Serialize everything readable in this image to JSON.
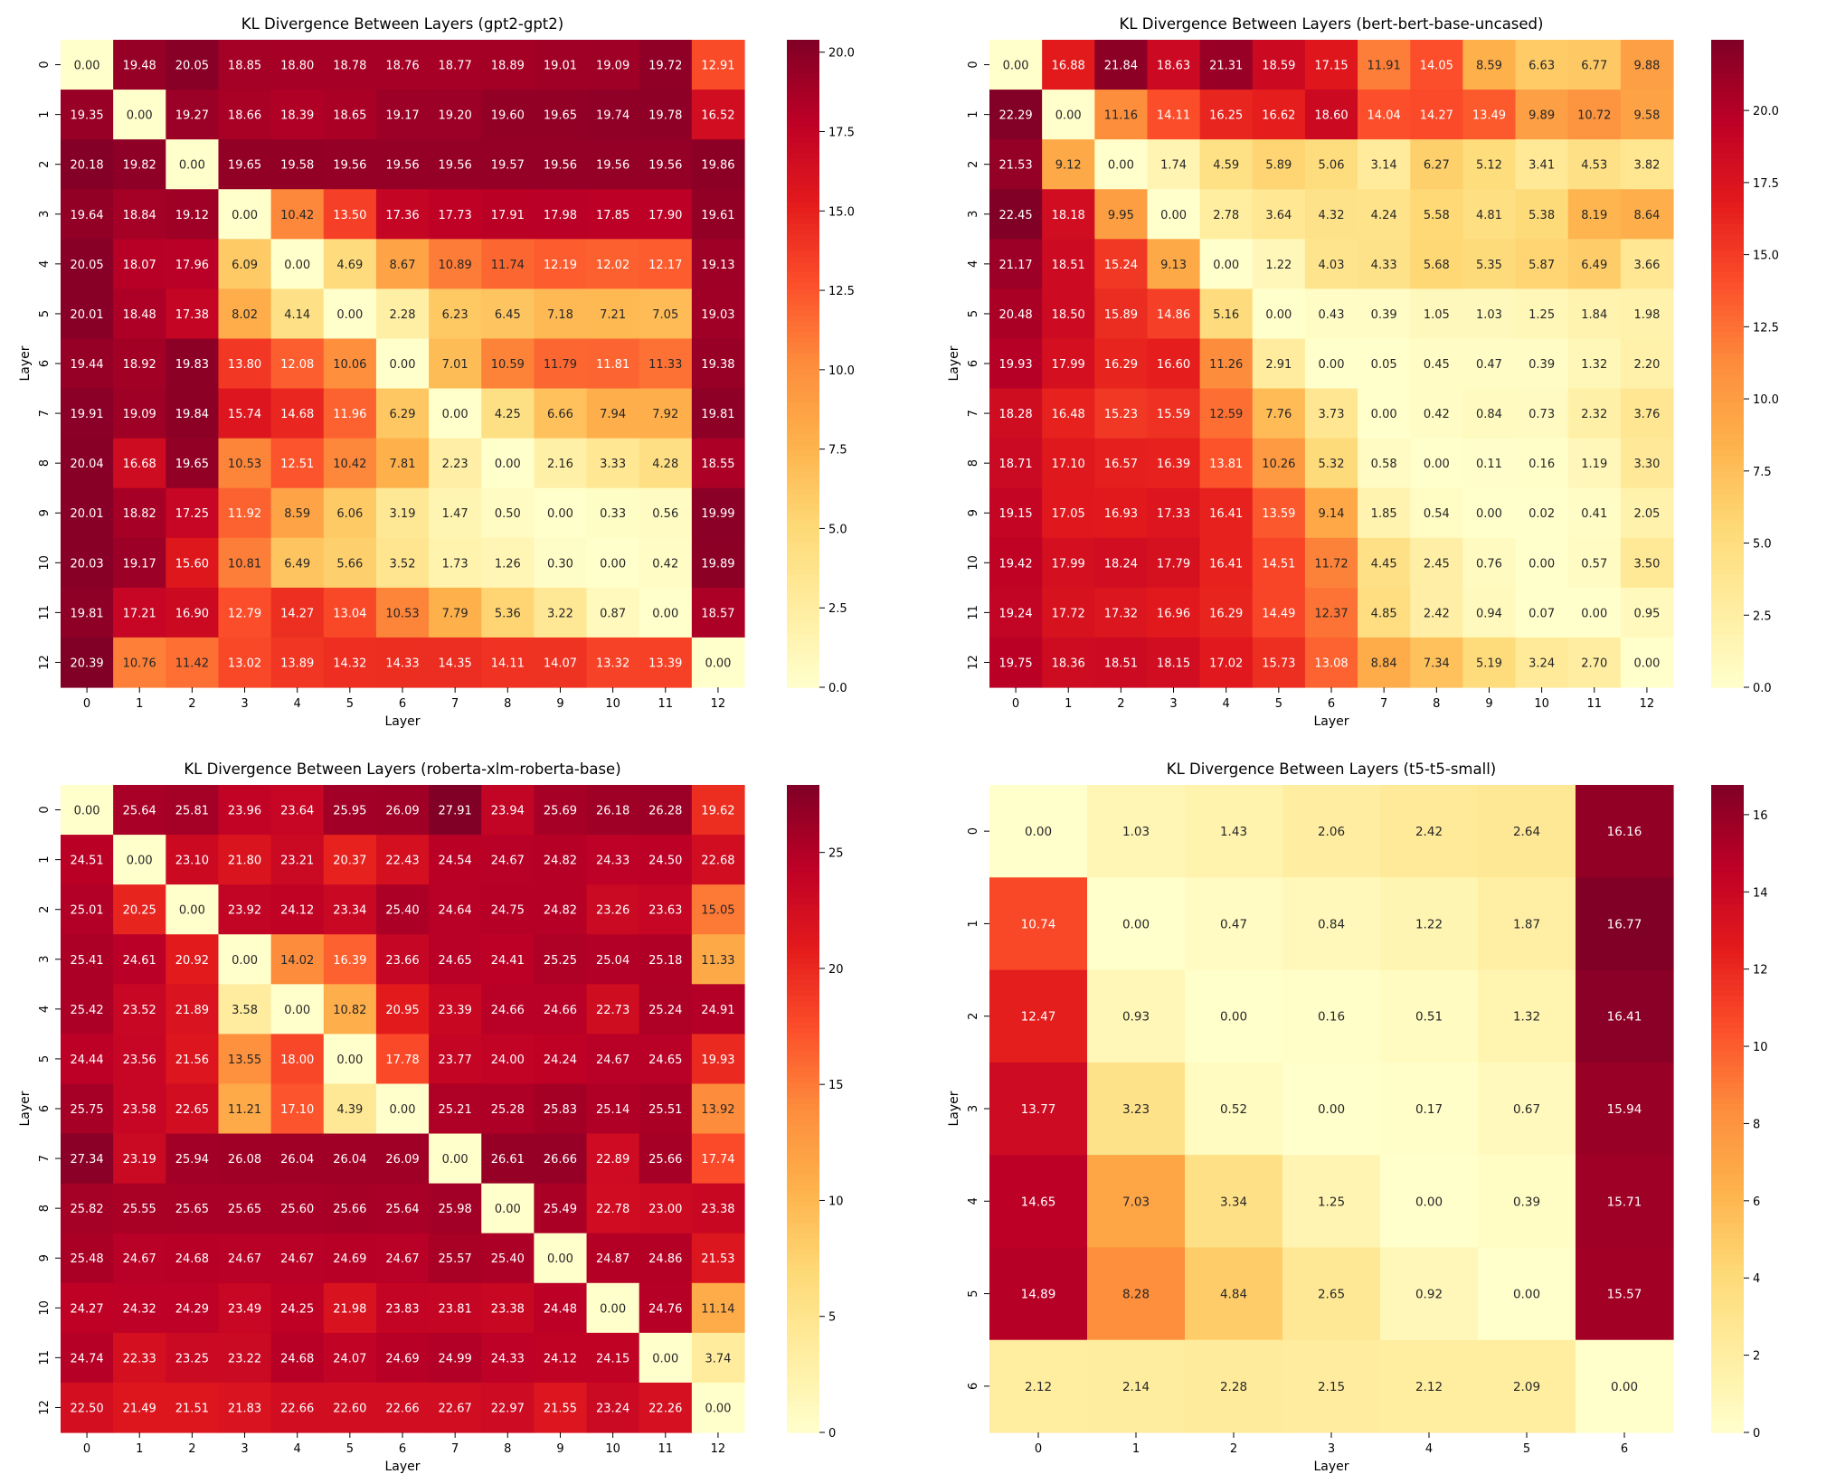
{
  "colormap": {
    "name": "YlOrRd",
    "stops": [
      "#ffffcc",
      "#ffeda0",
      "#fed976",
      "#feb24c",
      "#fd8d3c",
      "#fc4e2a",
      "#e31a1c",
      "#bd0026",
      "#800026"
    ]
  },
  "chart_data": [
    {
      "type": "heatmap",
      "title": "KL Divergence Between Layers (gpt2-gpt2)",
      "xlabel": "Layer",
      "ylabel": "Layer",
      "x_ticks": [
        "0",
        "1",
        "2",
        "3",
        "4",
        "5",
        "6",
        "7",
        "8",
        "9",
        "10",
        "11",
        "12"
      ],
      "y_ticks": [
        "0",
        "1",
        "2",
        "3",
        "4",
        "5",
        "6",
        "7",
        "8",
        "9",
        "10",
        "11",
        "12"
      ],
      "color_range": [
        0,
        20.39
      ],
      "colorbar_ticks": [
        "0.0",
        "2.5",
        "5.0",
        "7.5",
        "10.0",
        "12.5",
        "15.0",
        "17.5",
        "20.0"
      ],
      "colorbar_tick_values": [
        0,
        2.5,
        5,
        7.5,
        10,
        12.5,
        15,
        17.5,
        20
      ],
      "values": [
        [
          0.0,
          19.48,
          20.05,
          18.85,
          18.8,
          18.78,
          18.76,
          18.77,
          18.89,
          19.01,
          19.09,
          19.72,
          12.91
        ],
        [
          19.35,
          0.0,
          19.27,
          18.66,
          18.39,
          18.65,
          19.17,
          19.2,
          19.6,
          19.65,
          19.74,
          19.78,
          16.52
        ],
        [
          20.18,
          19.82,
          0.0,
          19.65,
          19.58,
          19.56,
          19.56,
          19.56,
          19.57,
          19.56,
          19.56,
          19.56,
          19.86
        ],
        [
          19.64,
          18.84,
          19.12,
          0.0,
          10.42,
          13.5,
          17.36,
          17.73,
          17.91,
          17.98,
          17.85,
          17.9,
          19.61
        ],
        [
          20.05,
          18.07,
          17.96,
          6.09,
          0.0,
          4.69,
          8.67,
          10.89,
          11.74,
          12.19,
          12.02,
          12.17,
          19.13
        ],
        [
          20.01,
          18.48,
          17.38,
          8.02,
          4.14,
          0.0,
          2.28,
          6.23,
          6.45,
          7.18,
          7.21,
          7.05,
          19.03
        ],
        [
          19.44,
          18.92,
          19.83,
          13.8,
          12.08,
          10.06,
          0.0,
          7.01,
          10.59,
          11.79,
          11.81,
          11.33,
          19.38
        ],
        [
          19.91,
          19.09,
          19.84,
          15.74,
          14.68,
          11.96,
          6.29,
          0.0,
          4.25,
          6.66,
          7.94,
          7.92,
          19.81
        ],
        [
          20.04,
          16.68,
          19.65,
          10.53,
          12.51,
          10.42,
          7.81,
          2.23,
          0.0,
          2.16,
          3.33,
          4.28,
          18.55
        ],
        [
          20.01,
          18.82,
          17.25,
          11.92,
          8.59,
          6.06,
          3.19,
          1.47,
          0.5,
          0.0,
          0.33,
          0.56,
          19.99
        ],
        [
          20.03,
          19.17,
          15.6,
          10.81,
          6.49,
          5.66,
          3.52,
          1.73,
          1.26,
          0.3,
          0.0,
          0.42,
          19.89
        ],
        [
          19.81,
          17.21,
          16.9,
          12.79,
          14.27,
          13.04,
          10.53,
          7.79,
          5.36,
          3.22,
          0.87,
          0.0,
          18.57
        ],
        [
          20.39,
          10.76,
          11.42,
          13.02,
          13.89,
          14.32,
          14.33,
          14.35,
          14.11,
          14.07,
          13.32,
          13.39,
          0.0
        ]
      ]
    },
    {
      "type": "heatmap",
      "title": "KL Divergence Between Layers (bert-bert-base-uncased)",
      "xlabel": "Layer",
      "ylabel": "Layer",
      "x_ticks": [
        "0",
        "1",
        "2",
        "3",
        "4",
        "5",
        "6",
        "7",
        "8",
        "9",
        "10",
        "11",
        "12"
      ],
      "y_ticks": [
        "0",
        "1",
        "2",
        "3",
        "4",
        "5",
        "6",
        "7",
        "8",
        "9",
        "10",
        "11",
        "12"
      ],
      "color_range": [
        0,
        22.45
      ],
      "colorbar_ticks": [
        "0.0",
        "2.5",
        "5.0",
        "7.5",
        "10.0",
        "12.5",
        "15.0",
        "17.5",
        "20.0"
      ],
      "colorbar_tick_values": [
        0,
        2.5,
        5,
        7.5,
        10,
        12.5,
        15,
        17.5,
        20
      ],
      "values": [
        [
          0.0,
          16.88,
          21.84,
          18.63,
          21.31,
          18.59,
          17.15,
          11.91,
          14.05,
          8.59,
          6.63,
          6.77,
          9.88
        ],
        [
          22.29,
          0.0,
          11.16,
          14.11,
          16.25,
          16.62,
          18.6,
          14.04,
          14.27,
          13.49,
          9.89,
          10.72,
          9.58
        ],
        [
          21.53,
          9.12,
          0.0,
          1.74,
          4.59,
          5.89,
          5.06,
          3.14,
          6.27,
          5.12,
          3.41,
          4.53,
          3.82
        ],
        [
          22.45,
          18.18,
          9.95,
          0.0,
          2.78,
          3.64,
          4.32,
          4.24,
          5.58,
          4.81,
          5.38,
          8.19,
          8.64
        ],
        [
          21.17,
          18.51,
          15.24,
          9.13,
          0.0,
          1.22,
          4.03,
          4.33,
          5.68,
          5.35,
          5.87,
          6.49,
          3.66
        ],
        [
          20.48,
          18.5,
          15.89,
          14.86,
          5.16,
          0.0,
          0.43,
          0.39,
          1.05,
          1.03,
          1.25,
          1.84,
          1.98
        ],
        [
          19.93,
          17.99,
          16.29,
          16.6,
          11.26,
          2.91,
          0.0,
          0.05,
          0.45,
          0.47,
          0.39,
          1.32,
          2.2
        ],
        [
          18.28,
          16.48,
          15.23,
          15.59,
          12.59,
          7.76,
          3.73,
          0.0,
          0.42,
          0.84,
          0.73,
          2.32,
          3.76
        ],
        [
          18.71,
          17.1,
          16.57,
          16.39,
          13.81,
          10.26,
          5.32,
          0.58,
          0.0,
          0.11,
          0.16,
          1.19,
          3.3
        ],
        [
          19.15,
          17.05,
          16.93,
          17.33,
          16.41,
          13.59,
          9.14,
          1.85,
          0.54,
          0.0,
          0.02,
          0.41,
          2.05
        ],
        [
          19.42,
          17.99,
          18.24,
          17.79,
          16.41,
          14.51,
          11.72,
          4.45,
          2.45,
          0.76,
          0.0,
          0.57,
          3.5
        ],
        [
          19.24,
          17.72,
          17.32,
          16.96,
          16.29,
          14.49,
          12.37,
          4.85,
          2.42,
          0.94,
          0.07,
          0.0,
          0.95
        ],
        [
          19.75,
          18.36,
          18.51,
          18.15,
          17.02,
          15.73,
          13.08,
          8.84,
          7.34,
          5.19,
          3.24,
          2.7,
          0.0
        ]
      ]
    },
    {
      "type": "heatmap",
      "title": "KL Divergence Between Layers (roberta-xlm-roberta-base)",
      "xlabel": "Layer",
      "ylabel": "Layer",
      "x_ticks": [
        "0",
        "1",
        "2",
        "3",
        "4",
        "5",
        "6",
        "7",
        "8",
        "9",
        "10",
        "11",
        "12"
      ],
      "y_ticks": [
        "0",
        "1",
        "2",
        "3",
        "4",
        "5",
        "6",
        "7",
        "8",
        "9",
        "10",
        "11",
        "12"
      ],
      "color_range": [
        0,
        27.91
      ],
      "colorbar_ticks": [
        "0",
        "5",
        "10",
        "15",
        "20",
        "25"
      ],
      "colorbar_tick_values": [
        0,
        5,
        10,
        15,
        20,
        25
      ],
      "values": [
        [
          0.0,
          25.64,
          25.81,
          23.96,
          23.64,
          25.95,
          26.09,
          27.91,
          23.94,
          25.69,
          26.18,
          26.28,
          19.62
        ],
        [
          24.51,
          0.0,
          23.1,
          21.8,
          23.21,
          20.37,
          22.43,
          24.54,
          24.67,
          24.82,
          24.33,
          24.5,
          22.68
        ],
        [
          25.01,
          20.25,
          0.0,
          23.92,
          24.12,
          23.34,
          25.4,
          24.64,
          24.75,
          24.82,
          23.26,
          23.63,
          15.05
        ],
        [
          25.41,
          24.61,
          20.92,
          0.0,
          14.02,
          16.39,
          23.66,
          24.65,
          24.41,
          25.25,
          25.04,
          25.18,
          11.33
        ],
        [
          25.42,
          23.52,
          21.89,
          3.58,
          0.0,
          10.82,
          20.95,
          23.39,
          24.66,
          24.66,
          22.73,
          25.24,
          24.91
        ],
        [
          24.44,
          23.56,
          21.56,
          13.55,
          18.0,
          0.0,
          17.78,
          23.77,
          24.0,
          24.24,
          24.67,
          24.65,
          19.93
        ],
        [
          25.75,
          23.58,
          22.65,
          11.21,
          17.1,
          4.39,
          0.0,
          25.21,
          25.28,
          25.83,
          25.14,
          25.51,
          13.92
        ],
        [
          27.34,
          23.19,
          25.94,
          26.08,
          26.04,
          26.04,
          26.09,
          0.0,
          26.61,
          26.66,
          22.89,
          25.66,
          17.74
        ],
        [
          25.82,
          25.55,
          25.65,
          25.65,
          25.6,
          25.66,
          25.64,
          25.98,
          0.0,
          25.49,
          22.78,
          23.0,
          23.38
        ],
        [
          25.48,
          24.67,
          24.68,
          24.67,
          24.67,
          24.69,
          24.67,
          25.57,
          25.4,
          0.0,
          24.87,
          24.86,
          21.53
        ],
        [
          24.27,
          24.32,
          24.29,
          23.49,
          24.25,
          21.98,
          23.83,
          23.81,
          23.38,
          24.48,
          0.0,
          24.76,
          11.14
        ],
        [
          24.74,
          22.33,
          23.25,
          23.22,
          24.68,
          24.07,
          24.69,
          24.99,
          24.33,
          24.12,
          24.15,
          0.0,
          3.74
        ],
        [
          22.5,
          21.49,
          21.51,
          21.83,
          22.66,
          22.6,
          22.66,
          22.67,
          22.97,
          21.55,
          23.24,
          22.26,
          0.0
        ]
      ]
    },
    {
      "type": "heatmap",
      "title": "KL Divergence Between Layers (t5-t5-small)",
      "xlabel": "Layer",
      "ylabel": "Layer",
      "x_ticks": [
        "0",
        "1",
        "2",
        "3",
        "4",
        "5",
        "6"
      ],
      "y_ticks": [
        "0",
        "1",
        "2",
        "3",
        "4",
        "5",
        "6"
      ],
      "color_range": [
        0,
        16.77
      ],
      "colorbar_ticks": [
        "0",
        "2",
        "4",
        "6",
        "8",
        "10",
        "12",
        "14",
        "16"
      ],
      "colorbar_tick_values": [
        0,
        2,
        4,
        6,
        8,
        10,
        12,
        14,
        16
      ],
      "values": [
        [
          0.0,
          1.03,
          1.43,
          2.06,
          2.42,
          2.64,
          16.16
        ],
        [
          10.74,
          0.0,
          0.47,
          0.84,
          1.22,
          1.87,
          16.77
        ],
        [
          12.47,
          0.93,
          0.0,
          0.16,
          0.51,
          1.32,
          16.41
        ],
        [
          13.77,
          3.23,
          0.52,
          0.0,
          0.17,
          0.67,
          15.94
        ],
        [
          14.65,
          7.03,
          3.34,
          1.25,
          0.0,
          0.39,
          15.71
        ],
        [
          14.89,
          8.28,
          4.84,
          2.65,
          0.92,
          0.0,
          15.57
        ],
        [
          2.12,
          2.14,
          2.28,
          2.15,
          2.12,
          2.09,
          0.0
        ]
      ]
    }
  ]
}
